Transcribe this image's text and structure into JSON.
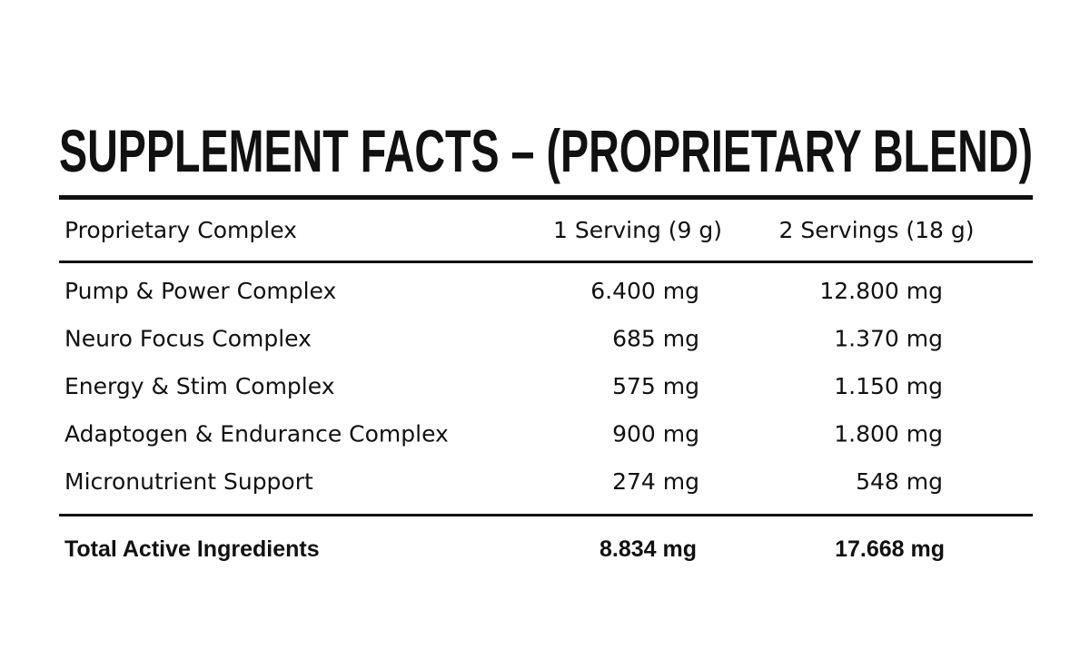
{
  "title": "SUPPLEMENT FACTS – (PROPRIETARY BLEND)",
  "table": {
    "header": [
      "Proprietary Complex",
      "1 Serving (9 g)",
      "2 Servings (18 g)"
    ],
    "rows": [
      [
        "Pump & Power Complex",
        "6.400 mg",
        "12.800 mg"
      ],
      [
        "Neuro Focus Complex",
        "685 mg",
        "1.370 mg"
      ],
      [
        "Energy & Stim Complex",
        "575 mg",
        "1.150 mg"
      ],
      [
        "Adaptogen & Endurance Complex",
        "900 mg",
        "1.800 mg"
      ],
      [
        "Micronutrient Support",
        "274 mg",
        "548 mg"
      ]
    ],
    "total": [
      "Total Active Ingredients",
      "8.834 mg",
      "17.668 mg"
    ]
  }
}
